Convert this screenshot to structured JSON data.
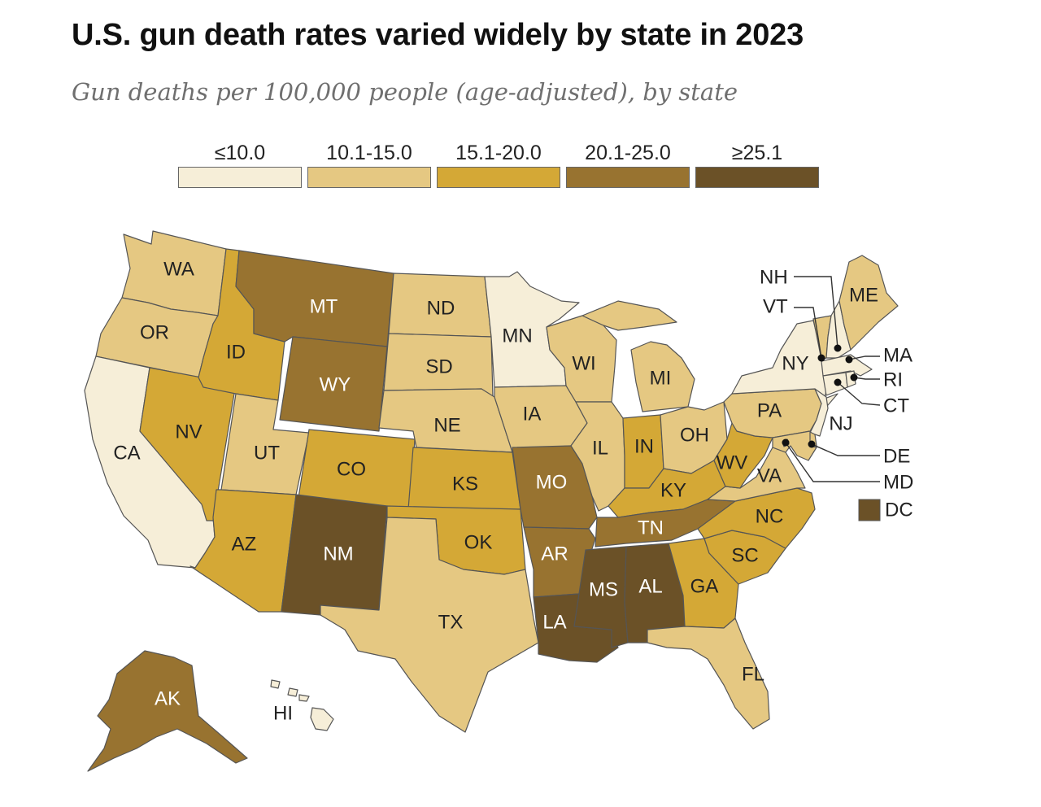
{
  "title": "U.S. gun death rates varied widely by state in 2023",
  "subtitle": "Gun deaths per 100,000 people (age-adjusted), by state",
  "legend": [
    {
      "label": "≤10.0",
      "color": "#f6eed8",
      "text_color": "#222222"
    },
    {
      "label": "10.1-15.0",
      "color": "#e5c882",
      "text_color": "#222222"
    },
    {
      "label": "15.1-20.0",
      "color": "#d4a836",
      "text_color": "#222222"
    },
    {
      "label": "20.1-25.0",
      "color": "#987330",
      "text_color": "#ffffff"
    },
    {
      "label": "≥25.1",
      "color": "#6b5127",
      "text_color": "#ffffff"
    }
  ],
  "states": [
    {
      "abbr": "WA",
      "bin": 1
    },
    {
      "abbr": "OR",
      "bin": 1
    },
    {
      "abbr": "CA",
      "bin": 0
    },
    {
      "abbr": "NV",
      "bin": 2
    },
    {
      "abbr": "ID",
      "bin": 2
    },
    {
      "abbr": "MT",
      "bin": 3
    },
    {
      "abbr": "WY",
      "bin": 3
    },
    {
      "abbr": "UT",
      "bin": 1
    },
    {
      "abbr": "AZ",
      "bin": 2
    },
    {
      "abbr": "CO",
      "bin": 2
    },
    {
      "abbr": "NM",
      "bin": 4
    },
    {
      "abbr": "ND",
      "bin": 1
    },
    {
      "abbr": "SD",
      "bin": 1
    },
    {
      "abbr": "NE",
      "bin": 1
    },
    {
      "abbr": "KS",
      "bin": 2
    },
    {
      "abbr": "OK",
      "bin": 2
    },
    {
      "abbr": "TX",
      "bin": 1
    },
    {
      "abbr": "MN",
      "bin": 0
    },
    {
      "abbr": "IA",
      "bin": 1
    },
    {
      "abbr": "MO",
      "bin": 3
    },
    {
      "abbr": "AR",
      "bin": 3
    },
    {
      "abbr": "LA",
      "bin": 4
    },
    {
      "abbr": "WI",
      "bin": 1
    },
    {
      "abbr": "IL",
      "bin": 1
    },
    {
      "abbr": "MI",
      "bin": 1
    },
    {
      "abbr": "IN",
      "bin": 2
    },
    {
      "abbr": "OH",
      "bin": 1
    },
    {
      "abbr": "KY",
      "bin": 2
    },
    {
      "abbr": "TN",
      "bin": 3
    },
    {
      "abbr": "MS",
      "bin": 4
    },
    {
      "abbr": "AL",
      "bin": 4
    },
    {
      "abbr": "GA",
      "bin": 2
    },
    {
      "abbr": "FL",
      "bin": 1
    },
    {
      "abbr": "SC",
      "bin": 2
    },
    {
      "abbr": "NC",
      "bin": 2
    },
    {
      "abbr": "VA",
      "bin": 1
    },
    {
      "abbr": "WV",
      "bin": 2
    },
    {
      "abbr": "PA",
      "bin": 1
    },
    {
      "abbr": "NY",
      "bin": 0
    },
    {
      "abbr": "VT",
      "bin": 1
    },
    {
      "abbr": "NH",
      "bin": 0
    },
    {
      "abbr": "ME",
      "bin": 1
    },
    {
      "abbr": "MA",
      "bin": 0
    },
    {
      "abbr": "RI",
      "bin": 0
    },
    {
      "abbr": "CT",
      "bin": 0
    },
    {
      "abbr": "NJ",
      "bin": 0
    },
    {
      "abbr": "DE",
      "bin": 1
    },
    {
      "abbr": "MD",
      "bin": 1
    },
    {
      "abbr": "DC",
      "bin": 4
    },
    {
      "abbr": "AK",
      "bin": 3
    },
    {
      "abbr": "HI",
      "bin": 0
    }
  ]
}
